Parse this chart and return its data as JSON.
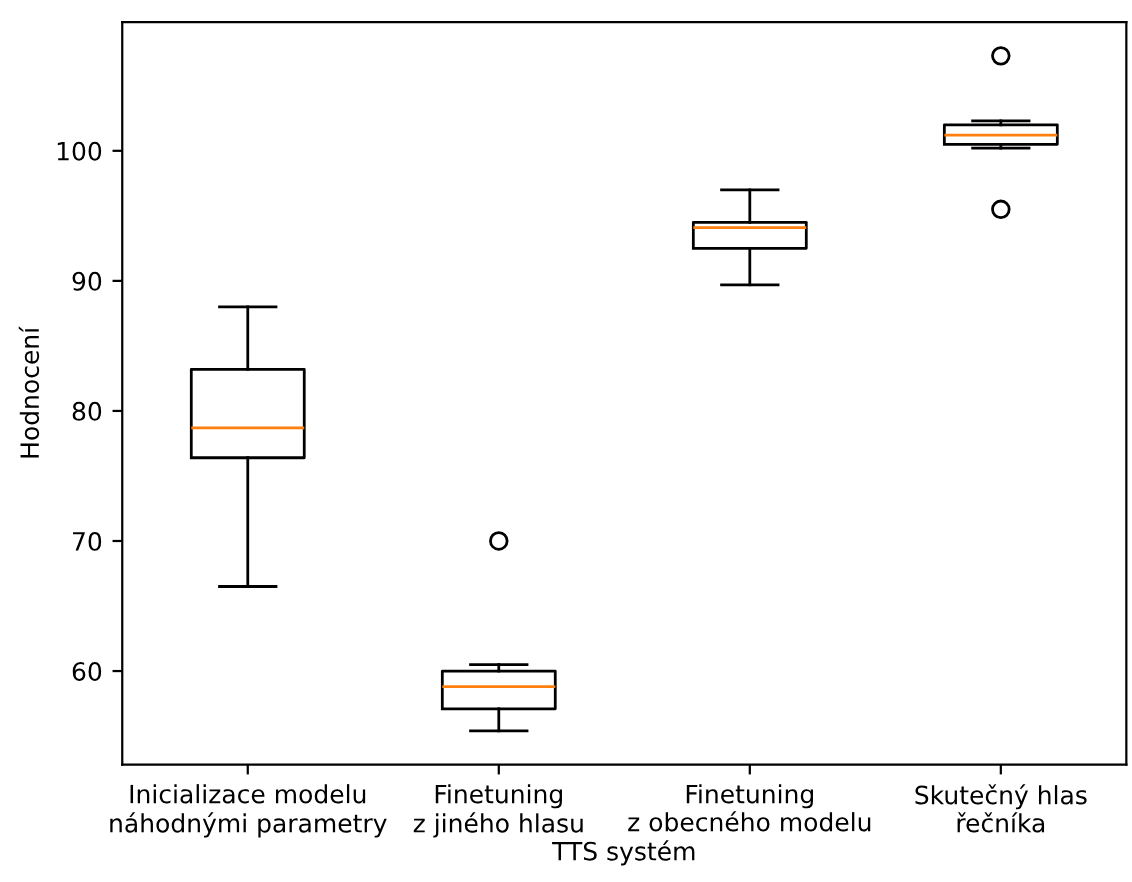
{
  "chart_data": {
    "type": "box",
    "xlabel": "TTS systém",
    "ylabel": "Hodnocení",
    "categories": [
      "Inicializace modelu\nnáhodnými parametry",
      "Finetuning\nz jiného hlasu",
      "Finetuning\nz obecného modelu",
      "Skutečný hlas\nřečníka"
    ],
    "boxes": [
      {
        "low": 66.5,
        "q1": 76.4,
        "median": 78.7,
        "q3": 83.2,
        "high": 88.0
      },
      {
        "low": 55.4,
        "q1": 57.1,
        "median": 58.8,
        "q3": 60.0,
        "high": 60.5,
        "outliers": [
          70.0
        ]
      },
      {
        "low": 89.7,
        "q1": 92.5,
        "median": 94.1,
        "q3": 94.5,
        "high": 97.0
      },
      {
        "low": 100.2,
        "q1": 100.5,
        "median": 101.2,
        "q3": 102.0,
        "high": 102.3,
        "outliers": [
          107.3,
          95.5
        ]
      }
    ],
    "ylim": [
      52.8,
      109.9
    ],
    "yticks": [
      60,
      70,
      80,
      90,
      100
    ],
    "grid": false
  }
}
